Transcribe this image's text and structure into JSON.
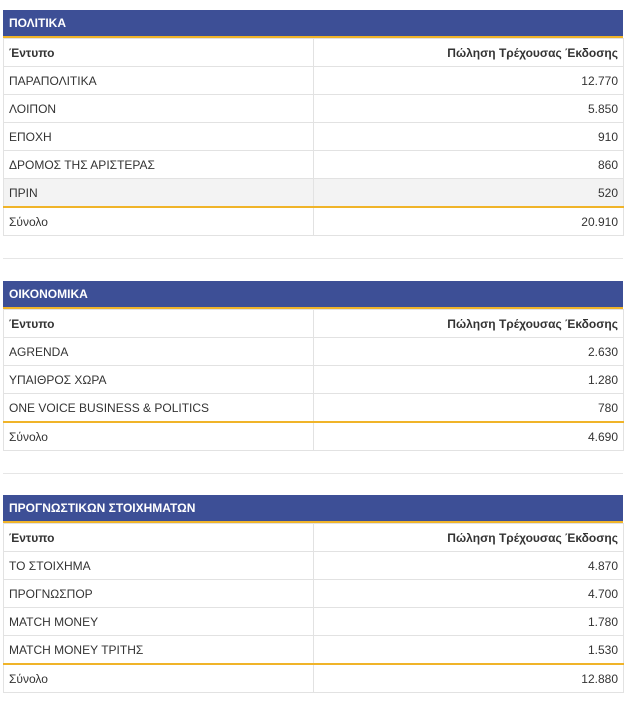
{
  "sections": [
    {
      "title": "ΠΟΛΙΤΙΚΑ",
      "col_name": "Έντυπο",
      "col_value": "Πώληση Τρέχουσας Έκδοσης",
      "rows": [
        {
          "name": "ΠΑΡΑΠΟΛΙΤΙΚΑ",
          "value": "12.770"
        },
        {
          "name": "ΛΟΙΠΟΝ",
          "value": "5.850"
        },
        {
          "name": "ΕΠΟΧΗ",
          "value": "910"
        },
        {
          "name": "ΔΡΟΜΟΣ ΤΗΣ ΑΡΙΣΤΕΡΑΣ",
          "value": "860"
        },
        {
          "name": "ΠΡΙΝ",
          "value": "520"
        }
      ],
      "total_label": "Σύνολο",
      "total_value": "20.910"
    },
    {
      "title": "ΟΙΚΟΝΟΜΙΚΑ",
      "col_name": "Έντυπο",
      "col_value": "Πώληση Τρέχουσας Έκδοσης",
      "rows": [
        {
          "name": "AGRENDA",
          "value": "2.630"
        },
        {
          "name": "ΥΠΑΙΘΡΟΣ ΧΩΡΑ",
          "value": "1.280"
        },
        {
          "name": "ONE VOICE BUSINESS & POLITICS",
          "value": "780"
        }
      ],
      "total_label": "Σύνολο",
      "total_value": "4.690"
    },
    {
      "title": "ΠΡΟΓΝΩΣΤΙΚΩΝ ΣΤΟΙΧΗΜΑΤΩΝ",
      "col_name": "Έντυπο",
      "col_value": "Πώληση Τρέχουσας Έκδοσης",
      "rows": [
        {
          "name": "ΤΟ ΣΤΟΙΧΗΜΑ",
          "value": "4.870"
        },
        {
          "name": "ΠΡΟΓΝΩΣΠΟΡ",
          "value": "4.700"
        },
        {
          "name": "MATCH MONEY",
          "value": "1.780"
        },
        {
          "name": "MATCH MONEY ΤΡΙΤΗΣ",
          "value": "1.530"
        }
      ],
      "total_label": "Σύνολο",
      "total_value": "12.880"
    }
  ],
  "colors": {
    "header_bg": "#3d4f96",
    "accent": "#f0b429",
    "highlight_row": "#f3f3f3"
  }
}
